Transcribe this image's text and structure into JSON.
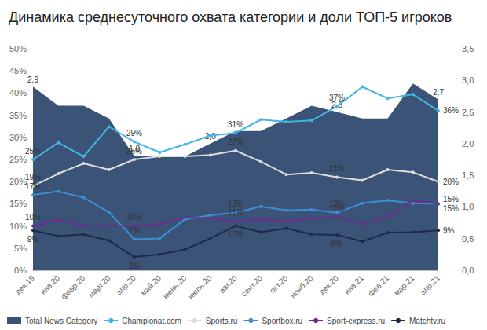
{
  "chart_data": {
    "type": "line",
    "title": "Динамика среднесуточного охвата категории и доли ТОП-5 игроков",
    "categories": [
      "дек.19",
      "янв.20",
      "февр.20",
      "март.20",
      "апр.20",
      "май.20",
      "июнь.20",
      "июль.20",
      "авг.20",
      "сент.20",
      "окт.20",
      "нояб.20",
      "дек.20",
      "янв.21",
      "фев.21",
      "мар.21",
      "апр.21"
    ],
    "ylim": [
      0,
      50
    ],
    "yticks": [
      {
        "value": 0,
        "label": "0%"
      },
      {
        "value": 5,
        "label": "5%"
      },
      {
        "value": 10,
        "label": "10%"
      },
      {
        "value": 15,
        "label": "15%"
      },
      {
        "value": 20,
        "label": "20%"
      },
      {
        "value": 25,
        "label": "25%"
      },
      {
        "value": 30,
        "label": "30%"
      },
      {
        "value": 35,
        "label": "35%"
      },
      {
        "value": 40,
        "label": "40%"
      },
      {
        "value": 45,
        "label": "45%"
      },
      {
        "value": 50,
        "label": "50%"
      }
    ],
    "y2lim": [
      0,
      3.5
    ],
    "y2ticks": [
      {
        "value": 0,
        "label": "0,0"
      },
      {
        "value": 0.5,
        "label": "0,5"
      },
      {
        "value": 1,
        "label": "1,0"
      },
      {
        "value": 1.5,
        "label": "1,5"
      },
      {
        "value": 2,
        "label": "2,0"
      },
      {
        "value": 2.5,
        "label": "2,5"
      },
      {
        "value": 3,
        "label": "3,0"
      },
      {
        "value": 3.5,
        "label": "3,5"
      }
    ],
    "grid": false,
    "legend": "bottom",
    "data_labels": true,
    "series": [
      {
        "name": "Total News Category",
        "type": "area",
        "axis": "y2",
        "color": "#3a5376",
        "marker": "none",
        "values": [
          2.9,
          2.6,
          2.6,
          2.4,
          1.8,
          1.8,
          1.8,
          2.0,
          2.2,
          2.2,
          2.4,
          2.6,
          2.5,
          2.4,
          2.4,
          2.95,
          2.7
        ],
        "value_labels": [
          "2,9",
          null,
          null,
          null,
          "1,8",
          null,
          null,
          "2,0",
          null,
          null,
          null,
          null,
          "2,5",
          null,
          null,
          null,
          "2,7"
        ]
      },
      {
        "name": "Championat.com",
        "type": "line",
        "color": "#41b6e6",
        "marker": "circle",
        "values": [
          25,
          28.8,
          25.7,
          32.4,
          29,
          26.6,
          28.4,
          30.4,
          31,
          34,
          33.5,
          33.8,
          37,
          41.4,
          38.8,
          39.7,
          36
        ],
        "value_labels": [
          "25%",
          null,
          null,
          null,
          "29%",
          null,
          null,
          null,
          "31%",
          null,
          null,
          null,
          "37%",
          null,
          null,
          null,
          "36%"
        ]
      },
      {
        "name": "Sports.ru",
        "type": "line",
        "color": "#dcdcdc",
        "marker": "circle",
        "values": [
          19,
          21.8,
          24.1,
          22.7,
          25,
          25.7,
          25.7,
          26,
          27,
          24.5,
          21.6,
          22,
          21,
          20.3,
          22.7,
          22.1,
          20
        ],
        "value_labels": [
          "19%",
          null,
          null,
          null,
          "25%",
          null,
          null,
          null,
          "27%",
          null,
          null,
          null,
          "21%",
          null,
          null,
          null,
          "20%"
        ]
      },
      {
        "name": "Sportbox.ru",
        "type": "line",
        "color": "#3d8fd6",
        "marker": "circle",
        "values": [
          17,
          17.8,
          16.4,
          13.1,
          7,
          7.2,
          11.5,
          12.4,
          13,
          14.4,
          13.5,
          13.7,
          13,
          15.1,
          15.8,
          15.1,
          15
        ],
        "value_labels": [
          "17%",
          null,
          null,
          null,
          "7%",
          null,
          null,
          null,
          "13%",
          null,
          null,
          null,
          "13%",
          null,
          null,
          null,
          "15%"
        ]
      },
      {
        "name": "Sport-express.ru",
        "type": "line",
        "color": "#6c2d91",
        "marker": "circle",
        "values": [
          10,
          11.3,
          10.1,
          10,
          10,
          10.4,
          11.9,
          11.7,
          11,
          11.5,
          11,
          11.7,
          12,
          10.4,
          12,
          15.8,
          15
        ],
        "value_labels": [
          "10%",
          null,
          null,
          null,
          "10%",
          null,
          null,
          null,
          "11%",
          null,
          null,
          null,
          "12%",
          null,
          null,
          null,
          "15%"
        ]
      },
      {
        "name": "Matchtv.ru",
        "type": "line",
        "color": "#1c2b4a",
        "marker": "circle",
        "values": [
          9,
          7.7,
          8.1,
          6.7,
          3,
          3.6,
          4.7,
          7.2,
          10,
          8.6,
          9.5,
          8.1,
          8,
          6.5,
          8.5,
          8.6,
          9
        ],
        "value_labels": [
          "9%",
          null,
          null,
          null,
          "3%",
          null,
          null,
          null,
          "10%",
          null,
          null,
          null,
          "8%",
          null,
          null,
          null,
          "9%"
        ]
      }
    ]
  }
}
